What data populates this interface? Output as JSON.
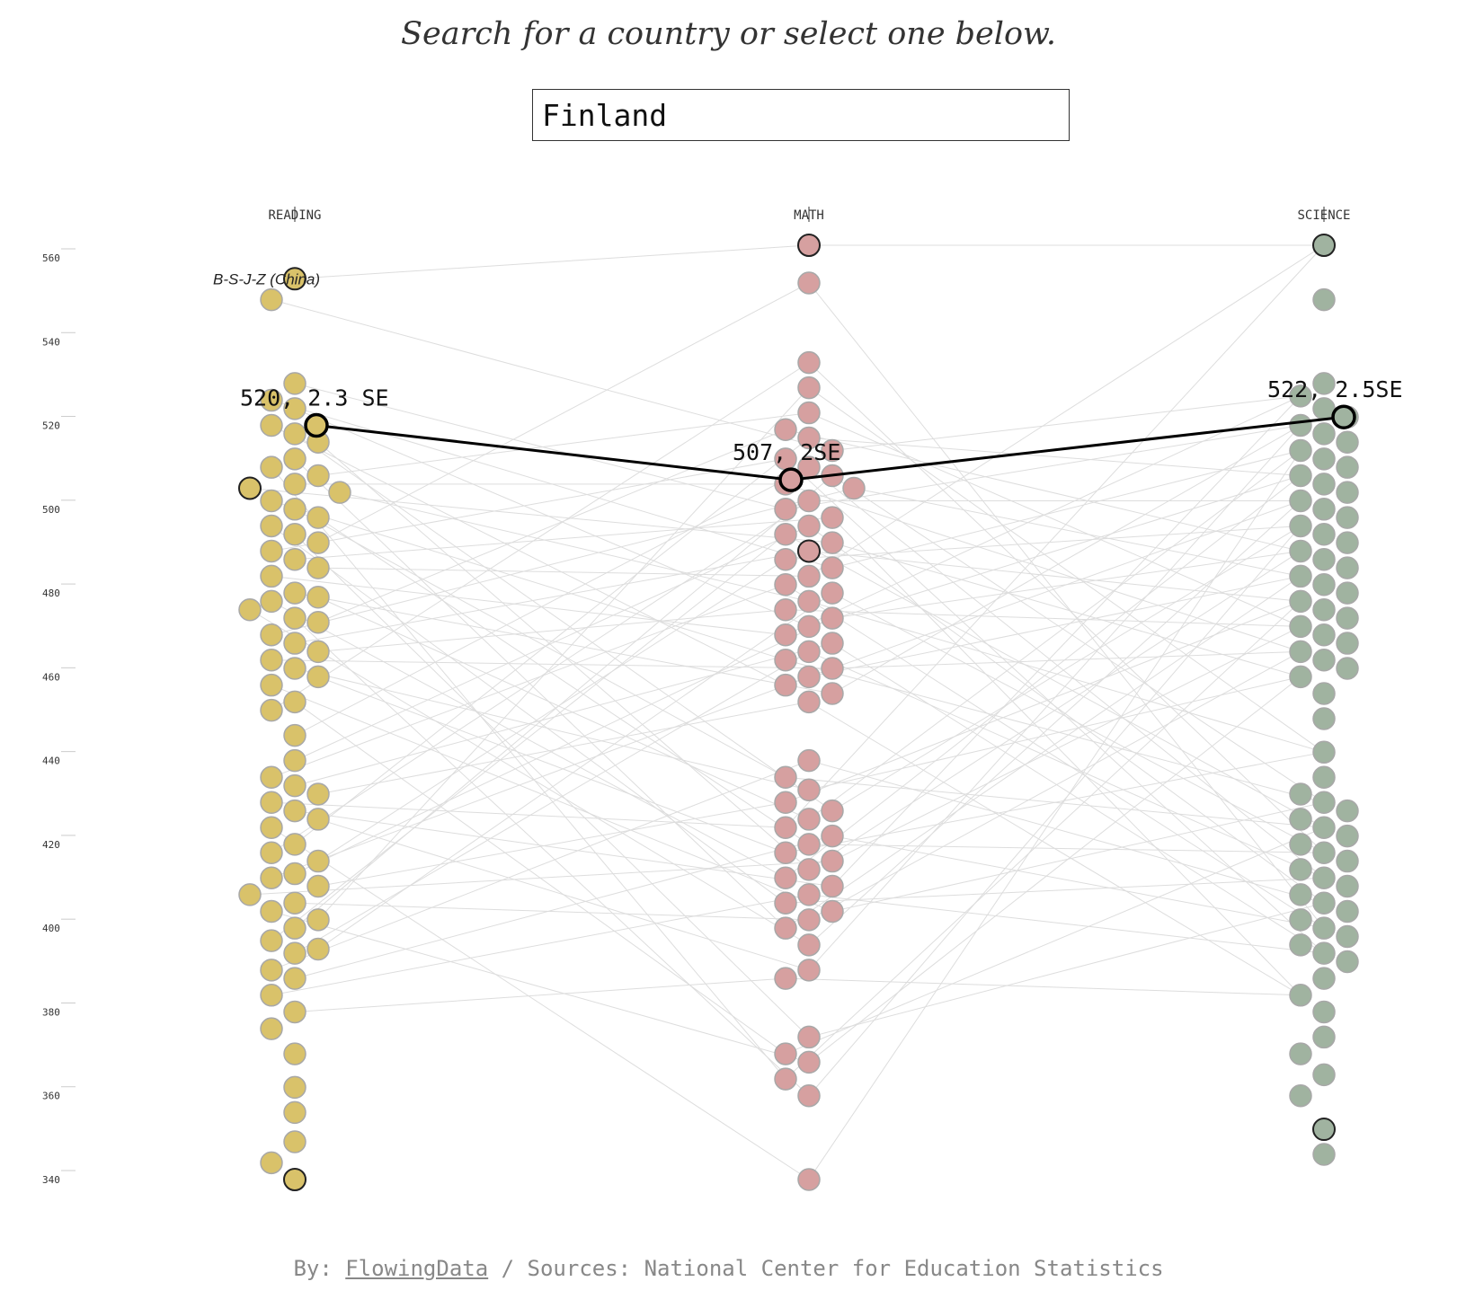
{
  "header": {
    "prompt": "Search for a country or select one below."
  },
  "search": {
    "value": "Finland"
  },
  "colors": {
    "reading": "#d9c26a",
    "math": "#d6a0a0",
    "science": "#a0b3a0",
    "link_line": "#dddddd",
    "highlight": "#000000"
  },
  "chart_data": {
    "type": "scatter",
    "subtype": "beeswarm-slopegraph",
    "columns": [
      "READING",
      "MATH",
      "SCIENCE"
    ],
    "yticks": [
      340,
      360,
      380,
      400,
      420,
      440,
      460,
      480,
      500,
      520,
      540,
      560
    ],
    "ylim": [
      340,
      563
    ],
    "grid": false,
    "top_label": "B-S-J-Z (China)",
    "selected": {
      "name": "Finland",
      "reading": 520,
      "math": 507,
      "science": 522,
      "labels": {
        "reading": "520, 2.3 SE",
        "math": "507, 2SE",
        "science": "522, 2.5SE"
      }
    },
    "series": [
      {
        "name": "READING",
        "values": [
          555,
          550,
          530,
          526,
          524,
          520,
          518,
          516,
          512,
          510,
          508,
          506,
          505,
          504,
          502,
          500,
          498,
          496,
          494,
          492,
          490,
          488,
          486,
          484,
          480,
          479,
          478,
          476,
          474,
          473,
          470,
          468,
          466,
          464,
          462,
          460,
          458,
          454,
          452,
          446,
          440,
          436,
          434,
          432,
          430,
          428,
          426,
          424,
          420,
          418,
          416,
          413,
          412,
          410,
          408,
          406,
          404,
          402,
          400,
          397,
          395,
          394,
          390,
          388,
          384,
          380,
          376,
          370,
          362,
          356,
          349,
          344,
          340
        ],
        "marked": [
          555,
          505,
          340
        ]
      },
      {
        "name": "MATH",
        "values": [
          563,
          554,
          535,
          529,
          523,
          519,
          517,
          514,
          512,
          510,
          508,
          506,
          505,
          502,
          500,
          498,
          496,
          494,
          492,
          490,
          488,
          486,
          484,
          482,
          480,
          478,
          476,
          474,
          472,
          470,
          468,
          466,
          464,
          462,
          460,
          458,
          456,
          454,
          440,
          436,
          433,
          430,
          428,
          426,
          424,
          422,
          420,
          418,
          416,
          414,
          412,
          410,
          408,
          406,
          404,
          402,
          400,
          396,
          390,
          388,
          374,
          370,
          368,
          364,
          360,
          340
        ],
        "marked": [
          563,
          490,
          350
        ]
      },
      {
        "name": "SCIENCE",
        "values": [
          563,
          550,
          530,
          527,
          524,
          522,
          520,
          518,
          516,
          514,
          512,
          510,
          508,
          506,
          504,
          502,
          500,
          498,
          496,
          494,
          492,
          490,
          488,
          486,
          484,
          482,
          480,
          478,
          476,
          474,
          472,
          470,
          468,
          466,
          464,
          462,
          460,
          456,
          450,
          442,
          436,
          432,
          430,
          428,
          426,
          424,
          422,
          420,
          418,
          416,
          414,
          412,
          410,
          408,
          406,
          404,
          402,
          400,
          398,
          396,
          394,
          392,
          388,
          384,
          380,
          374,
          370,
          365,
          360,
          352,
          346
        ],
        "marked": [
          563,
          503,
          352
        ]
      }
    ]
  },
  "footer": {
    "by_prefix": "By: ",
    "by_link": "FlowingData",
    "sources": " / Sources: National Center for Education Statistics"
  }
}
